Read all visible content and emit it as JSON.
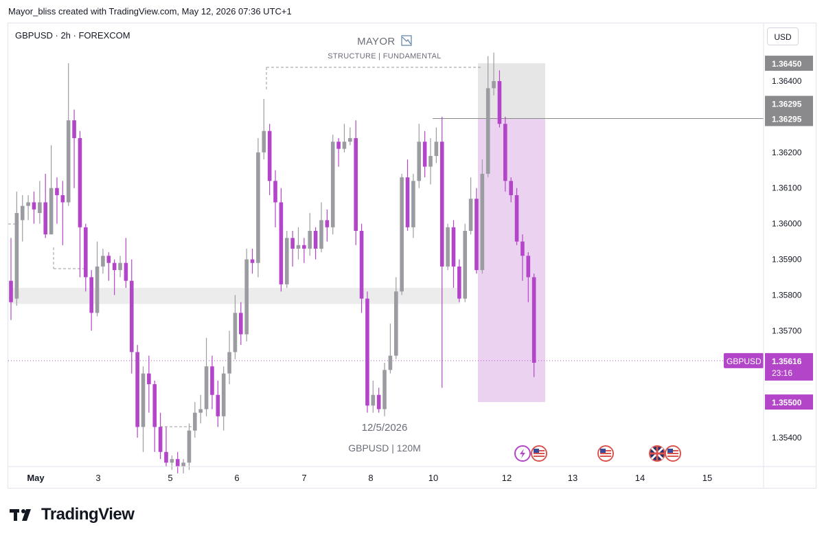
{
  "header": {
    "credit": "Mayor_bliss created with TradingView.com, May 12, 2026 07:36 UTC+1"
  },
  "symbol_info": "GBPUSD · 2h · FOREXCOM",
  "watermark": {
    "title": "MAYOR",
    "subtitle": "STRUCTURE  |  FUNDAMENTAL",
    "date": "12/5/2026",
    "pair": "GBPUSD  |  120M"
  },
  "currency_button": "USD",
  "footer": {
    "brand": "TradingView"
  },
  "colors": {
    "bull": "#9b9ca1",
    "bear": "#b345c8",
    "accent": "#b345c8",
    "grey_label": "#8a8a8d"
  },
  "chart_data": {
    "type": "candlestick",
    "symbol": "GBPUSD",
    "timeframe": "2h",
    "y_ticks": [
      "1.36400",
      "1.36200",
      "1.36100",
      "1.36000",
      "1.35900",
      "1.35800",
      "1.35700",
      "1.35400"
    ],
    "x_ticks": [
      "May",
      "3",
      "5",
      "6",
      "7",
      "8",
      "10",
      "12",
      "13",
      "14",
      "15"
    ],
    "price_labels": [
      {
        "value": "1.36450",
        "kind": "grey"
      },
      {
        "value": "1.36295",
        "kind": "grey"
      },
      {
        "value": "1.36295",
        "kind": "grey"
      },
      {
        "value": "1.35500",
        "kind": "purple"
      }
    ],
    "current": {
      "symbol": "GBPUSD",
      "price": "1.35616",
      "countdown": "23:16"
    },
    "ylim": [
      1.3532,
      1.3658
    ],
    "levels": {
      "top_zone_high": 1.3645,
      "resistance": 1.36295,
      "target": 1.355,
      "demand_zone": [
        1.35775,
        1.3582
      ]
    },
    "event_icons": [
      "lightning-icon",
      "us-flag-icon",
      "us-flag-icon",
      "uk-flag-icon",
      "us-flag-icon"
    ],
    "candles": [
      [
        1.3584,
        1.3578,
        1.3596,
        1.3573
      ],
      [
        1.3579,
        1.3603,
        1.3609,
        1.3577
      ],
      [
        1.3601,
        1.3605,
        1.3608,
        1.3595
      ],
      [
        1.3605,
        1.3606,
        1.3608,
        1.3601
      ],
      [
        1.3606,
        1.3604,
        1.3609,
        1.36
      ],
      [
        1.3603,
        1.3606,
        1.3612,
        1.36
      ],
      [
        1.3606,
        1.3597,
        1.3614,
        1.3596
      ],
      [
        1.3597,
        1.361,
        1.3622,
        1.3597
      ],
      [
        1.361,
        1.3608,
        1.3613,
        1.36
      ],
      [
        1.3608,
        1.3606,
        1.3612,
        1.3594
      ],
      [
        1.3606,
        1.3629,
        1.3645,
        1.3605
      ],
      [
        1.3629,
        1.3624,
        1.3632,
        1.361
      ],
      [
        1.3624,
        1.3599,
        1.3626,
        1.3585
      ],
      [
        1.3599,
        1.3585,
        1.36,
        1.3581
      ],
      [
        1.3585,
        1.3575,
        1.3587,
        1.357
      ],
      [
        1.3575,
        1.3588,
        1.3595,
        1.3574
      ],
      [
        1.3588,
        1.3591,
        1.3593,
        1.3586
      ],
      [
        1.3591,
        1.3589,
        1.3592,
        1.3584
      ],
      [
        1.3589,
        1.3587,
        1.359,
        1.358
      ],
      [
        1.3587,
        1.3589,
        1.3591,
        1.3585
      ],
      [
        1.3589,
        1.3584,
        1.3596,
        1.3582
      ],
      [
        1.3584,
        1.3564,
        1.359,
        1.3558
      ],
      [
        1.3564,
        1.3543,
        1.3566,
        1.354
      ],
      [
        1.3543,
        1.3558,
        1.356,
        1.3536
      ],
      [
        1.3558,
        1.3555,
        1.3563,
        1.3547
      ],
      [
        1.3555,
        1.3543,
        1.3556,
        1.3536
      ],
      [
        1.3543,
        1.3536,
        1.3547,
        1.3534
      ],
      [
        1.3536,
        1.3533,
        1.3543,
        1.3532
      ],
      [
        1.3533,
        1.3534,
        1.3535,
        1.3531
      ],
      [
        1.3534,
        1.3532,
        1.3536,
        1.353
      ],
      [
        1.3532,
        1.3533,
        1.3534,
        1.353
      ],
      [
        1.3533,
        1.3542,
        1.3544,
        1.3531
      ],
      [
        1.3542,
        1.3547,
        1.355,
        1.354
      ],
      [
        1.3547,
        1.3548,
        1.3552,
        1.3544
      ],
      [
        1.3548,
        1.356,
        1.3568,
        1.3546
      ],
      [
        1.356,
        1.3552,
        1.3563,
        1.3548
      ],
      [
        1.3552,
        1.3546,
        1.3556,
        1.3543
      ],
      [
        1.3546,
        1.3558,
        1.356,
        1.3542
      ],
      [
        1.3558,
        1.3564,
        1.357,
        1.3555
      ],
      [
        1.3564,
        1.3575,
        1.358,
        1.3562
      ],
      [
        1.3575,
        1.3569,
        1.3578,
        1.3566
      ],
      [
        1.3569,
        1.359,
        1.3593,
        1.3567
      ],
      [
        1.359,
        1.3589,
        1.3593,
        1.3586
      ],
      [
        1.3589,
        1.362,
        1.3624,
        1.3585
      ],
      [
        1.362,
        1.3626,
        1.3635,
        1.3618
      ],
      [
        1.3626,
        1.3612,
        1.3628,
        1.3608
      ],
      [
        1.3612,
        1.3606,
        1.3615,
        1.3599
      ],
      [
        1.3606,
        1.3583,
        1.361,
        1.3581
      ],
      [
        1.3583,
        1.3596,
        1.3598,
        1.3582
      ],
      [
        1.3596,
        1.3593,
        1.3598,
        1.3588
      ],
      [
        1.3593,
        1.3594,
        1.3599,
        1.359
      ],
      [
        1.3594,
        1.3593,
        1.3596,
        1.3589
      ],
      [
        1.3593,
        1.3598,
        1.3603,
        1.3591
      ],
      [
        1.3598,
        1.3593,
        1.3599,
        1.359
      ],
      [
        1.3593,
        1.3601,
        1.3606,
        1.3592
      ],
      [
        1.3601,
        1.3599,
        1.3604,
        1.3595
      ],
      [
        1.3599,
        1.3623,
        1.3625,
        1.3597
      ],
      [
        1.3623,
        1.3621,
        1.3624,
        1.3616
      ],
      [
        1.3621,
        1.3623,
        1.3628,
        1.362
      ],
      [
        1.3623,
        1.3624,
        1.3627,
        1.3622
      ],
      [
        1.3624,
        1.3598,
        1.3629,
        1.3594
      ],
      [
        1.3598,
        1.3579,
        1.36,
        1.3575
      ],
      [
        1.3579,
        1.3549,
        1.3581,
        1.3547
      ],
      [
        1.3549,
        1.3552,
        1.3556,
        1.3547
      ],
      [
        1.3552,
        1.3548,
        1.3554,
        1.3547
      ],
      [
        1.3548,
        1.3559,
        1.3561,
        1.3546
      ],
      [
        1.3559,
        1.3563,
        1.3572,
        1.3558
      ],
      [
        1.3563,
        1.3581,
        1.3585,
        1.3562
      ],
      [
        1.3581,
        1.3613,
        1.3614,
        1.358
      ],
      [
        1.3613,
        1.3599,
        1.3618,
        1.3598
      ],
      [
        1.3599,
        1.3612,
        1.3614,
        1.3596
      ],
      [
        1.3612,
        1.3623,
        1.3628,
        1.361
      ],
      [
        1.3623,
        1.3616,
        1.3626,
        1.3613
      ],
      [
        1.3616,
        1.3619,
        1.3624,
        1.3611
      ],
      [
        1.3619,
        1.3623,
        1.3627,
        1.3617
      ],
      [
        1.3623,
        1.3588,
        1.363,
        1.3554
      ],
      [
        1.3588,
        1.3599,
        1.36,
        1.3587
      ],
      [
        1.3599,
        1.3588,
        1.3601,
        1.3582
      ],
      [
        1.3588,
        1.3579,
        1.359,
        1.3578
      ],
      [
        1.3579,
        1.3598,
        1.36,
        1.3578
      ],
      [
        1.3598,
        1.3607,
        1.3613,
        1.3597
      ],
      [
        1.3607,
        1.3587,
        1.361,
        1.3586
      ],
      [
        1.3587,
        1.3614,
        1.3618,
        1.3586
      ],
      [
        1.3614,
        1.3638,
        1.3647,
        1.3613
      ],
      [
        1.3638,
        1.364,
        1.3648,
        1.3636
      ],
      [
        1.364,
        1.3628,
        1.3643,
        1.3627
      ],
      [
        1.3628,
        1.3612,
        1.363,
        1.3609
      ],
      [
        1.3612,
        1.3608,
        1.3613,
        1.3606
      ],
      [
        1.3608,
        1.3595,
        1.361,
        1.3594
      ],
      [
        1.3595,
        1.3591,
        1.3597,
        1.3584
      ],
      [
        1.3591,
        1.3585,
        1.3592,
        1.3578
      ],
      [
        1.3585,
        1.3561,
        1.3586,
        1.3557
      ]
    ]
  }
}
